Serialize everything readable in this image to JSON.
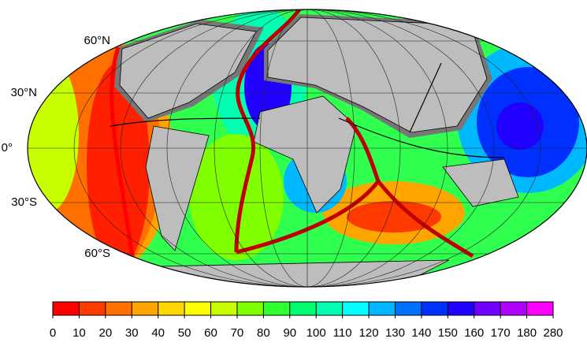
{
  "map": {
    "latitude_labels": [
      "60°N",
      "30°N",
      "0°",
      "30°S",
      "60°S"
    ]
  },
  "colorbar": {
    "ticks": [
      0,
      10,
      20,
      30,
      40,
      50,
      60,
      70,
      80,
      90,
      100,
      110,
      120,
      130,
      140,
      150,
      160,
      170,
      180,
      280
    ],
    "colors": [
      "#ff0000",
      "#ff3a00",
      "#ff7000",
      "#ffa500",
      "#ffd700",
      "#ffff00",
      "#c8ff00",
      "#80ff00",
      "#30ff30",
      "#00ff70",
      "#00ffb0",
      "#00ffff",
      "#00b8ff",
      "#0070ff",
      "#0030ff",
      "#2000ff",
      "#7000ff",
      "#b000ff",
      "#ff00ff"
    ]
  }
}
